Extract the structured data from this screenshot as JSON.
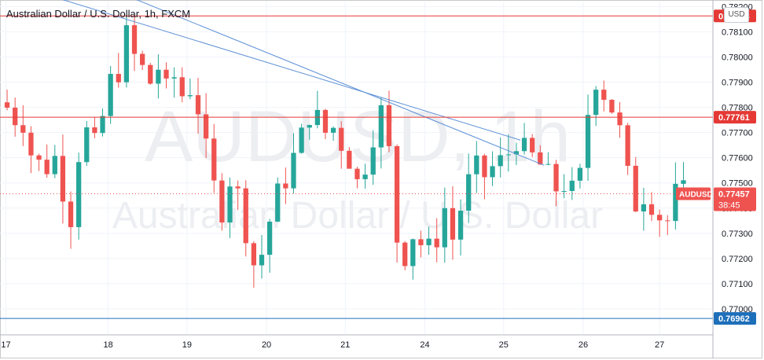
{
  "chart_title": "Australian Dollar / U.S. Dollar, 1h, FXCM",
  "currency_button": "USD",
  "watermark": {
    "symbol": "AUDUSD, 1h",
    "name": "Australian Dollar / U.S. Dollar"
  },
  "price_tag": {
    "symbol": "AUDUSD",
    "price": "0.77457",
    "countdown": "38:45"
  },
  "colors": {
    "up": "#26a69a",
    "down": "#ef5350",
    "resistance": "#e53935",
    "support": "#1e6fba",
    "trendline": "#5b8fd6",
    "grid": "#f0f3fa",
    "axis_text": "#131722"
  },
  "chart_data": {
    "type": "candlestick",
    "title": "Australian Dollar / U.S. Dollar, 1h, FXCM",
    "ylim": [
      0.769,
      0.7822
    ],
    "y_ticks": [
      "0.77000",
      "0.77100",
      "0.77200",
      "0.77300",
      "0.77400",
      "0.77500",
      "0.77600",
      "0.77700",
      "0.77800",
      "0.77900",
      "0.78000",
      "0.78100",
      "0.78200"
    ],
    "x_ticks": [
      {
        "label": "17",
        "pos": 0.35
      },
      {
        "label": "18",
        "pos": 13.2
      },
      {
        "label": "19",
        "pos": 23.1
      },
      {
        "label": "20",
        "pos": 33.1
      },
      {
        "label": "21",
        "pos": 43.0
      },
      {
        "label": "24",
        "pos": 53.0
      },
      {
        "label": "25",
        "pos": 62.9
      },
      {
        "label": "26",
        "pos": 72.9
      },
      {
        "label": "27",
        "pos": 82.5
      }
    ],
    "horizontal_levels": [
      {
        "price": 0.78163,
        "label": "0.78163",
        "role": "resistance"
      },
      {
        "price": 0.77761,
        "label": "0.77761",
        "role": "resistance"
      },
      {
        "price": 0.76962,
        "label": "0.76962",
        "role": "support"
      }
    ],
    "current_price": 0.77457,
    "trendlines": [
      {
        "x1": 8.0,
        "y1": 0.7834,
        "x2": 68.0,
        "y2": 0.7757
      },
      {
        "x1": 0.0,
        "y1": 0.783,
        "x2": 65.0,
        "y2": 0.7767
      }
    ],
    "price_path": [
      [
        0,
        0.7782
      ],
      [
        1.5,
        0.7776
      ],
      [
        2.5,
        0.7775
      ],
      [
        3.5,
        0.7762
      ],
      [
        5,
        0.7755
      ],
      [
        6.5,
        0.776
      ],
      [
        7.5,
        0.7748
      ],
      [
        8.5,
        0.7737
      ],
      [
        9.5,
        0.7762
      ],
      [
        10.5,
        0.777
      ],
      [
        11.5,
        0.7764
      ],
      [
        12.5,
        0.7776
      ],
      [
        13.5,
        0.779
      ],
      [
        14.5,
        0.7795
      ],
      [
        15.5,
        0.7808
      ],
      [
        16.5,
        0.78
      ],
      [
        17.5,
        0.7795
      ],
      [
        18.5,
        0.779
      ],
      [
        19.5,
        0.7796
      ],
      [
        20.5,
        0.7786
      ],
      [
        21.5,
        0.7792
      ],
      [
        22.5,
        0.7785
      ],
      [
        23.5,
        0.7788
      ],
      [
        24.5,
        0.778
      ],
      [
        25.5,
        0.7762
      ],
      [
        26.5,
        0.7748
      ],
      [
        27.5,
        0.774
      ],
      [
        28.5,
        0.7752
      ],
      [
        29.5,
        0.7745
      ],
      [
        30.5,
        0.7732
      ],
      [
        31.5,
        0.7718
      ],
      [
        32.5,
        0.7722
      ],
      [
        33.5,
        0.7735
      ],
      [
        34.5,
        0.7745
      ],
      [
        35.5,
        0.7752
      ],
      [
        36.5,
        0.776
      ],
      [
        37.5,
        0.7768
      ],
      [
        38.5,
        0.7778
      ],
      [
        39.5,
        0.7775
      ],
      [
        40.5,
        0.777
      ],
      [
        41.5,
        0.7772
      ],
      [
        42.5,
        0.7766
      ],
      [
        43.5,
        0.776
      ],
      [
        44.5,
        0.775
      ],
      [
        45.5,
        0.7758
      ],
      [
        46.5,
        0.777
      ],
      [
        47.5,
        0.7778
      ],
      [
        48.5,
        0.7762
      ],
      [
        49.5,
        0.7728
      ],
      [
        50.5,
        0.7722
      ],
      [
        51.5,
        0.773
      ],
      [
        52.5,
        0.7726
      ],
      [
        53.5,
        0.7723
      ],
      [
        54.5,
        0.7729
      ],
      [
        55.5,
        0.774
      ],
      [
        56.5,
        0.7728
      ],
      [
        57.5,
        0.774
      ],
      [
        58.5,
        0.775
      ],
      [
        59.5,
        0.7755
      ],
      [
        60.5,
        0.7753
      ],
      [
        61.5,
        0.7756
      ],
      [
        62.5,
        0.7758
      ],
      [
        63.5,
        0.7762
      ],
      [
        64.5,
        0.7768
      ],
      [
        65.5,
        0.7762
      ],
      [
        66.5,
        0.776
      ],
      [
        67.5,
        0.7757
      ],
      [
        68.5,
        0.7752
      ],
      [
        69.5,
        0.7748
      ],
      [
        70.5,
        0.775
      ],
      [
        71.5,
        0.7746
      ],
      [
        72.5,
        0.7752
      ],
      [
        73.5,
        0.7778
      ],
      [
        74.5,
        0.7792
      ],
      [
        75.5,
        0.7786
      ],
      [
        76.5,
        0.778
      ],
      [
        77.5,
        0.777
      ],
      [
        78.5,
        0.7752
      ],
      [
        79.5,
        0.7742
      ],
      [
        80.5,
        0.7746
      ],
      [
        81.5,
        0.7743
      ],
      [
        82.5,
        0.7737
      ],
      [
        83.5,
        0.7735
      ],
      [
        84.5,
        0.7745
      ],
      [
        85.3,
        0.77457
      ]
    ]
  }
}
